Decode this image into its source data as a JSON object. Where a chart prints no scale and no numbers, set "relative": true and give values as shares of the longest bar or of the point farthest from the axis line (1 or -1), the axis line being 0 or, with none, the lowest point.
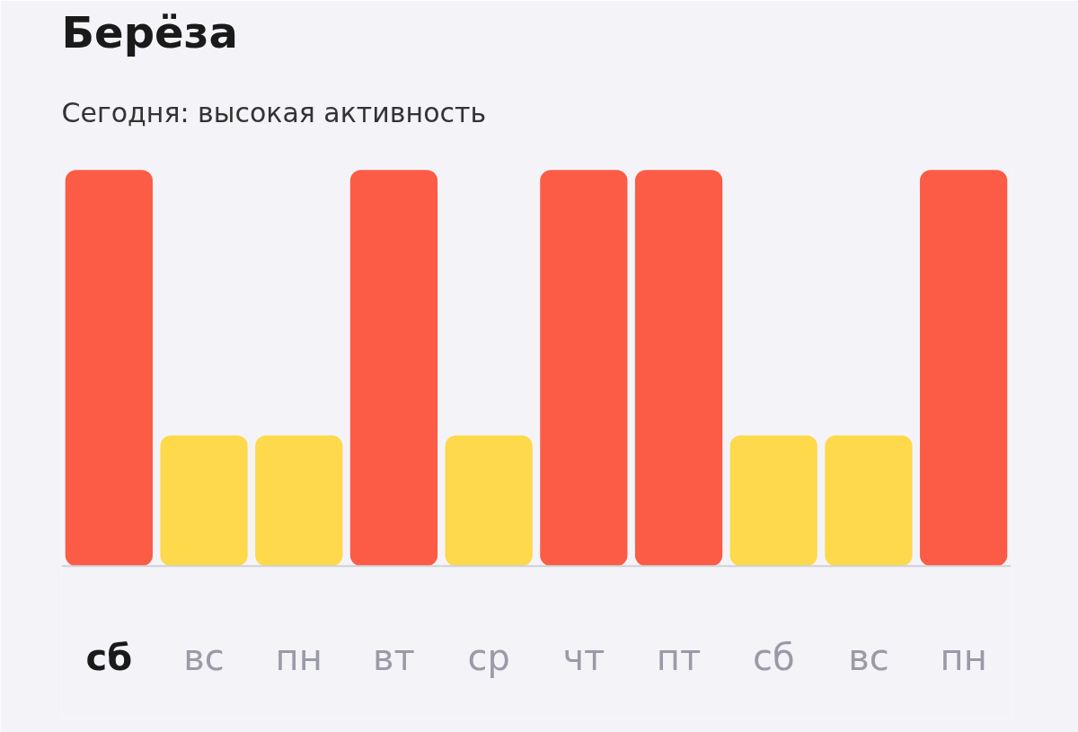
{
  "chart_data": {
    "type": "bar",
    "title": "Берёза",
    "subtitle": "Сегодня: высокая активность",
    "relative": true,
    "categories": [
      "сб",
      "вс",
      "пн",
      "вт",
      "ср",
      "чт",
      "пт",
      "сб",
      "вс",
      "пн"
    ],
    "values": [
      1,
      0.33,
      0.33,
      1,
      0.33,
      1,
      1,
      0.33,
      0.33,
      1
    ],
    "colors": [
      "#fc5b45",
      "#fdd94b",
      "#fdd94b",
      "#fc5b45",
      "#fdd94b",
      "#fc5b45",
      "#fc5b45",
      "#fdd94b",
      "#fdd94b",
      "#fc5b45"
    ],
    "grid": false
  }
}
